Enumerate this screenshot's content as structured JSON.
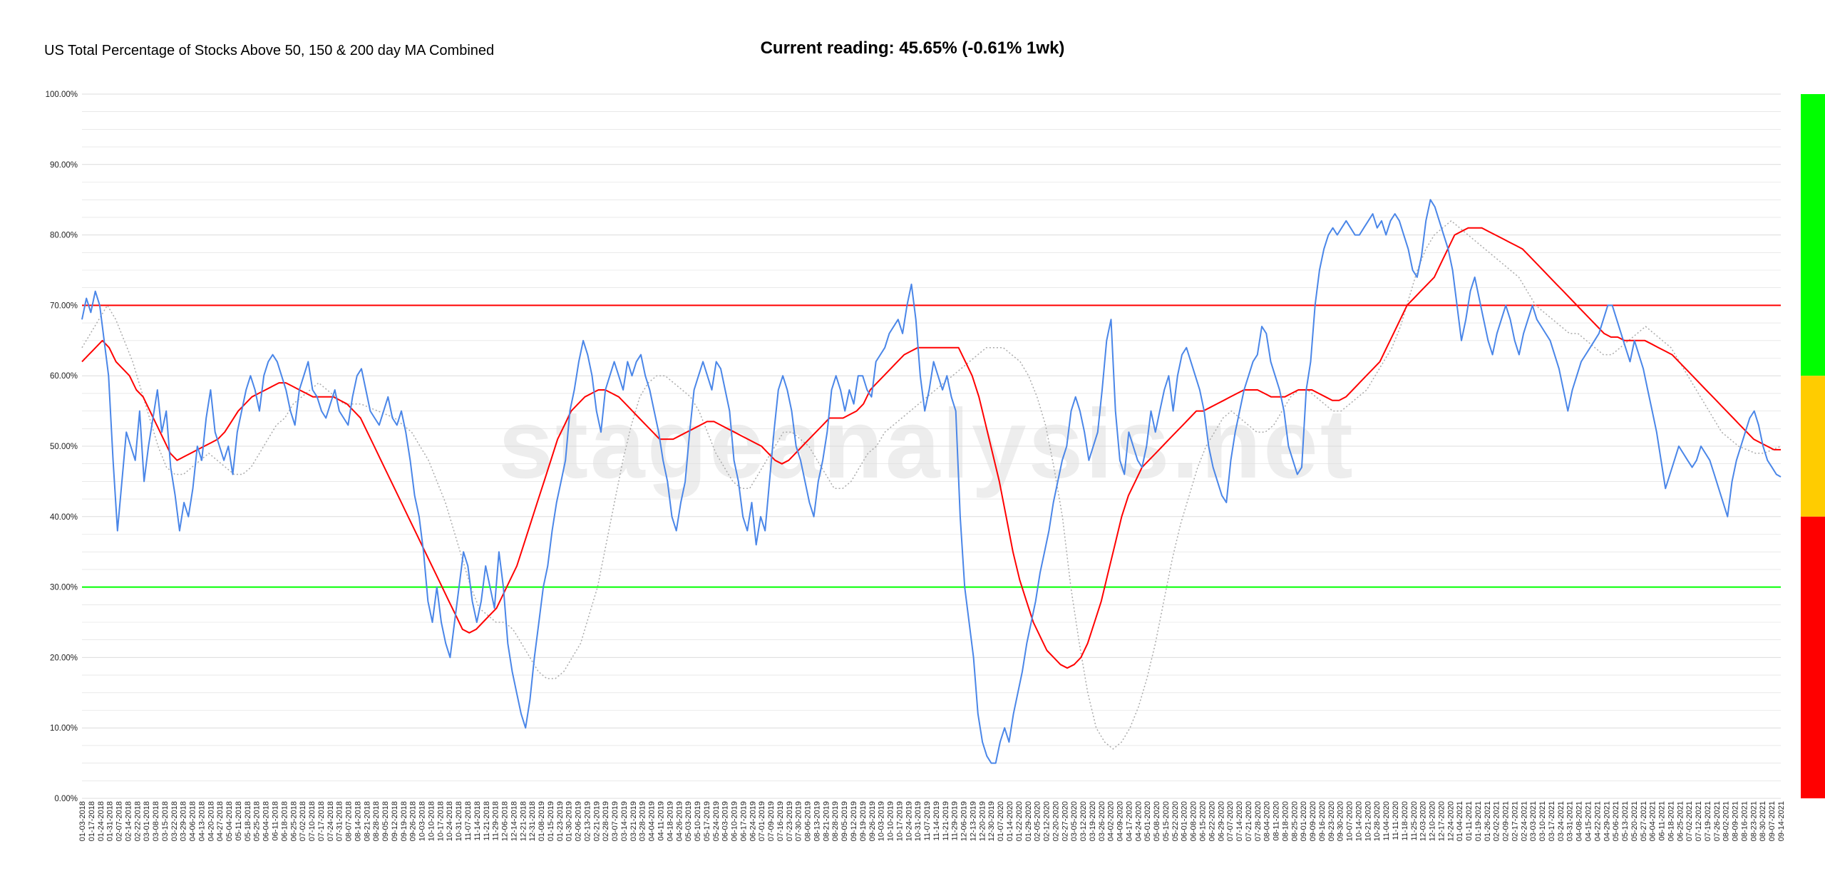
{
  "header": {
    "title": "US Total Percentage of Stocks Above 50, 150 & 200 day MA Combined",
    "current_reading": "Current reading: 45.65% (-0.61% 1wk)"
  },
  "watermark": "stageanalysis.net",
  "colors": {
    "primary_line": "#4a86e8",
    "ma_red": "#ff0000",
    "ma_dotted": "#aaaaaa",
    "upper_ref": "#ff0000",
    "lower_ref": "#00ff00",
    "band_green": "#00ff00",
    "band_yellow": "#ffcc00",
    "band_red": "#ff0000",
    "grid": "#dcdcdc"
  },
  "chart_data": {
    "type": "line",
    "title": "US Total Percentage of Stocks Above 50, 150 & 200 day MA Combined",
    "xlabel": "",
    "ylabel": "",
    "ylim": [
      0,
      100
    ],
    "y_tick_labels": [
      "0.00%",
      "10.00%",
      "20.00%",
      "30.00%",
      "40.00%",
      "50.00%",
      "60.00%",
      "70.00%",
      "80.00%",
      "90.00%",
      "100.00%"
    ],
    "grid": true,
    "reference_lines": [
      {
        "y": 70,
        "color": "#ff0000"
      },
      {
        "y": 30,
        "color": "#00ff00"
      }
    ],
    "x_tick_labels": [
      "01-03-2018",
      "01-17-2018",
      "01-24-2018",
      "01-31-2018",
      "02-07-2018",
      "02-14-2018",
      "02-22-2018",
      "03-01-2018",
      "03-08-2018",
      "03-15-2018",
      "03-22-2018",
      "03-29-2018",
      "04-06-2018",
      "04-13-2018",
      "04-20-2018",
      "04-27-2018",
      "05-04-2018",
      "05-11-2018",
      "05-18-2018",
      "05-25-2018",
      "06-04-2018",
      "06-11-2018",
      "06-18-2018",
      "06-25-2018",
      "07-02-2018",
      "07-10-2018",
      "07-17-2018",
      "07-24-2018",
      "07-31-2018",
      "08-07-2018",
      "08-14-2018",
      "08-21-2018",
      "08-28-2018",
      "09-05-2018",
      "09-12-2018",
      "09-19-2018",
      "09-26-2018",
      "10-03-2018",
      "10-10-2018",
      "10-17-2018",
      "10-24-2018",
      "10-31-2018",
      "11-07-2018",
      "11-14-2018",
      "11-21-2018",
      "11-29-2018",
      "12-06-2018",
      "12-14-2018",
      "12-21-2018",
      "12-31-2018",
      "01-08-2019",
      "01-15-2019",
      "01-23-2019",
      "01-30-2019",
      "02-06-2019",
      "02-13-2019",
      "02-21-2019",
      "02-28-2019",
      "03-07-2019",
      "03-14-2019",
      "03-21-2019",
      "03-28-2019",
      "04-04-2019",
      "04-11-2019",
      "04-18-2019",
      "04-26-2019",
      "05-03-2019",
      "05-10-2019",
      "05-17-2019",
      "05-24-2019",
      "06-03-2019",
      "06-10-2019",
      "06-17-2019",
      "06-24-2019",
      "07-01-2019",
      "07-09-2019",
      "07-16-2019",
      "07-23-2019",
      "07-30-2019",
      "08-06-2019",
      "08-13-2019",
      "08-21-2019",
      "08-28-2019",
      "09-05-2019",
      "09-12-2019",
      "09-19-2019",
      "09-26-2019",
      "10-03-2019",
      "10-10-2019",
      "10-17-2019",
      "10-24-2019",
      "10-31-2019",
      "11-07-2019",
      "11-14-2019",
      "11-21-2019",
      "11-29-2019",
      "12-06-2019",
      "12-13-2019",
      "12-20-2019",
      "12-30-2019",
      "01-07-2020",
      "01-14-2020",
      "01-22-2020",
      "01-29-2020",
      "02-05-2020",
      "02-12-2020",
      "02-20-2020",
      "02-27-2020",
      "03-05-2020",
      "03-12-2020",
      "03-19-2020",
      "03-26-2020",
      "04-02-2020",
      "04-09-2020",
      "04-17-2020",
      "04-24-2020",
      "05-01-2020",
      "05-08-2020",
      "05-15-2020",
      "05-22-2020",
      "06-01-2020",
      "06-08-2020",
      "06-15-2020",
      "06-22-2020",
      "06-29-2020",
      "07-07-2020",
      "07-14-2020",
      "07-21-2020",
      "07-28-2020",
      "08-04-2020",
      "08-11-2020",
      "08-18-2020",
      "08-25-2020",
      "09-01-2020",
      "09-09-2020",
      "09-16-2020",
      "09-23-2020",
      "09-30-2020",
      "10-07-2020",
      "10-14-2020",
      "10-21-2020",
      "10-28-2020",
      "11-04-2020",
      "11-11-2020",
      "11-18-2020",
      "11-25-2020",
      "12-03-2020",
      "12-10-2020",
      "12-17-2020",
      "12-24-2020",
      "01-04-2021",
      "01-11-2021",
      "01-19-2021",
      "01-26-2021",
      "02-02-2021",
      "02-09-2021",
      "02-17-2021",
      "02-24-2021",
      "03-03-2021",
      "03-10-2021",
      "03-17-2021",
      "03-24-2021",
      "03-31-2021",
      "04-08-2021",
      "04-15-2021",
      "04-22-2021",
      "04-29-2021",
      "05-06-2021",
      "05-13-2021",
      "05-20-2021",
      "05-27-2021",
      "06-04-2021",
      "06-11-2021",
      "06-18-2021",
      "06-25-2021",
      "07-02-2021",
      "07-12-2021",
      "07-19-2021",
      "07-26-2021",
      "08-02-2021",
      "08-09-2021",
      "08-16-2021",
      "08-23-2021",
      "08-30-2021",
      "09-07-2021",
      "09-14-2021"
    ],
    "series": [
      {
        "values": [
          68,
          71,
          69,
          72,
          70,
          65,
          60,
          48,
          38,
          45,
          52,
          50,
          48,
          55,
          45,
          50,
          54,
          58,
          52,
          55,
          47,
          43,
          38,
          42,
          40,
          44,
          50,
          48,
          54,
          58,
          52,
          50,
          48,
          50,
          46,
          52,
          55,
          58,
          60,
          58,
          55,
          60,
          62,
          63,
          62,
          60,
          58,
          55,
          53,
          58,
          60,
          62,
          58,
          57,
          55,
          54,
          56,
          58,
          55,
          54,
          53,
          57,
          60,
          61,
          58,
          55,
          54,
          53,
          55,
          57,
          54,
          53,
          55,
          52,
          48,
          43,
          40,
          35,
          28,
          25,
          30,
          25,
          22,
          20,
          25,
          30,
          35,
          33,
          28,
          25,
          28,
          33,
          30,
          27,
          35,
          30,
          22,
          18,
          15,
          12,
          10,
          14,
          20,
          25,
          30,
          33,
          38,
          42,
          45,
          48,
          55,
          58,
          62,
          65,
          63,
          60,
          55,
          52,
          58,
          60,
          62,
          60,
          58,
          62,
          60,
          62,
          63,
          60,
          58,
          55,
          52,
          48,
          45,
          40,
          38,
          42,
          45,
          52,
          58,
          60,
          62,
          60,
          58,
          62,
          61,
          58,
          55,
          48,
          45,
          40,
          38,
          42,
          36,
          40,
          38,
          45,
          52,
          58,
          60,
          58,
          55,
          50,
          48,
          45,
          42,
          40,
          45,
          48,
          52,
          58,
          60,
          58,
          55,
          58,
          56,
          60,
          60,
          58,
          57,
          62,
          63,
          64,
          66,
          67,
          68,
          66,
          70,
          73,
          68,
          60,
          55,
          58,
          62,
          60,
          58,
          60,
          57,
          55,
          40,
          30,
          25,
          20,
          12,
          8,
          6,
          5,
          5,
          8,
          10,
          8,
          12,
          15,
          18,
          22,
          25,
          28,
          32,
          35,
          38,
          42,
          45,
          48,
          50,
          55,
          57,
          55,
          52,
          48,
          50,
          52,
          58,
          65,
          68,
          55,
          48,
          46,
          52,
          50,
          48,
          47,
          50,
          55,
          52,
          55,
          58,
          60,
          55,
          60,
          63,
          64,
          62,
          60,
          58,
          55,
          50,
          47,
          45,
          43,
          42,
          48,
          52,
          55,
          58,
          60,
          62,
          63,
          67,
          66,
          62,
          60,
          58,
          55,
          50,
          48,
          46,
          47,
          58,
          62,
          70,
          75,
          78,
          80,
          81,
          80,
          81,
          82,
          81,
          80,
          80,
          81,
          82,
          83,
          81,
          82,
          80,
          82,
          83,
          82,
          80,
          78,
          75,
          74,
          77,
          82,
          85,
          84,
          82,
          80,
          78,
          75,
          70,
          65,
          68,
          72,
          74,
          71,
          68,
          65,
          63,
          66,
          68,
          70,
          68,
          65,
          63,
          66,
          68,
          70,
          68,
          67,
          66,
          65,
          63,
          61,
          58,
          55,
          58,
          60,
          62,
          63,
          64,
          65,
          66,
          68,
          70,
          70,
          68,
          66,
          64,
          62,
          65,
          63,
          61,
          58,
          55,
          52,
          48,
          44,
          46,
          48,
          50,
          49,
          48,
          47,
          48,
          50,
          49,
          48,
          46,
          44,
          42,
          40,
          45,
          48,
          50,
          52,
          54,
          55,
          53,
          50,
          48,
          47,
          46,
          45.65
        ]
      },
      {
        "values": [
          62,
          63,
          64,
          65,
          64,
          62,
          61,
          60,
          58,
          57,
          55,
          53,
          51,
          49,
          48,
          48.5,
          49,
          49.5,
          50,
          50.5,
          51,
          52,
          53.5,
          55,
          56,
          57,
          57.5,
          58,
          58.5,
          59,
          59,
          58.5,
          58,
          57.5,
          57,
          57,
          57,
          57,
          56.5,
          56,
          55,
          54,
          52,
          50,
          48,
          46,
          44,
          42,
          40,
          38,
          36,
          34,
          32,
          30,
          28,
          26,
          24,
          23.5,
          24,
          25,
          26,
          27,
          29,
          31,
          33,
          36,
          39,
          42,
          45,
          48,
          51,
          53,
          55,
          56,
          57,
          57.5,
          58,
          58,
          57.5,
          57,
          56,
          55,
          54,
          53,
          52,
          51,
          51,
          51,
          51.5,
          52,
          52.5,
          53,
          53.5,
          53.5,
          53,
          52.5,
          52,
          51.5,
          51,
          50.5,
          50,
          49,
          48,
          47.5,
          48,
          49,
          50,
          51,
          52,
          53,
          54,
          54,
          54,
          54.5,
          55,
          56,
          58,
          59,
          60,
          61,
          62,
          63,
          63.5,
          64,
          64,
          64,
          64,
          64,
          64,
          64,
          62,
          60,
          57,
          53,
          49,
          45,
          40,
          35,
          31,
          28,
          25,
          23,
          21,
          20,
          19,
          18.5,
          19,
          20,
          22,
          25,
          28,
          32,
          36,
          40,
          43,
          45,
          47,
          48,
          49,
          50,
          51,
          52,
          53,
          54,
          55,
          55,
          55.5,
          56,
          56.5,
          57,
          57.5,
          58,
          58,
          58,
          57.5,
          57,
          57,
          57,
          57.5,
          58,
          58,
          58,
          57.5,
          57,
          56.5,
          56.5,
          57,
          58,
          59,
          60,
          61,
          62,
          64,
          66,
          68,
          70,
          71,
          72,
          73,
          74,
          76,
          78,
          80,
          80.5,
          81,
          81,
          81,
          80.5,
          80,
          79.5,
          79,
          78.5,
          78,
          77,
          76,
          75,
          74,
          73,
          72,
          71,
          70,
          69,
          68,
          67,
          66,
          65.5,
          65.5,
          65,
          65,
          65,
          65,
          64.5,
          64,
          63.5,
          63,
          62,
          61,
          60,
          59,
          58,
          57,
          56,
          55,
          54,
          53,
          52,
          51,
          50.5,
          50,
          49.5,
          49.5
        ]
      },
      {
        "values": [
          64,
          66,
          68,
          70,
          68,
          65,
          62,
          58,
          54,
          50,
          47,
          46,
          46,
          47,
          48,
          49,
          48,
          47,
          46,
          46,
          47,
          49,
          51,
          53,
          54,
          56,
          57,
          58,
          59,
          58,
          57,
          56,
          56,
          56,
          55.5,
          55,
          54.5,
          54,
          53,
          52,
          50,
          48,
          45,
          42,
          38,
          34,
          30,
          27,
          26,
          25,
          25,
          24,
          22,
          20,
          18,
          17,
          17,
          18,
          20,
          22,
          26,
          30,
          36,
          42,
          48,
          53,
          57,
          59,
          60,
          60,
          59,
          58,
          57,
          55,
          52,
          49,
          47,
          45,
          44,
          44,
          46,
          48,
          50,
          52,
          52,
          51,
          50,
          48,
          46,
          44,
          44,
          45,
          47,
          49,
          50,
          52,
          53,
          54,
          55,
          56,
          57,
          58,
          59,
          60,
          61,
          62,
          63,
          64,
          64,
          64,
          63,
          62,
          60,
          57,
          53,
          47,
          40,
          30,
          22,
          15,
          10,
          8,
          7,
          8,
          10,
          13,
          17,
          22,
          28,
          34,
          39,
          43,
          47,
          50,
          52,
          54,
          55,
          54,
          53,
          52,
          52,
          53,
          55,
          57,
          58,
          58,
          57,
          56,
          55,
          55,
          56,
          57,
          58,
          60,
          62,
          64,
          67,
          71,
          75,
          78,
          80,
          81,
          82,
          81,
          80,
          79,
          78,
          77,
          76,
          75,
          74,
          72,
          70,
          69,
          68,
          67,
          66,
          66,
          65,
          64,
          63,
          63,
          64,
          65,
          66,
          67,
          66,
          65,
          64,
          62,
          60,
          58,
          56,
          54,
          52,
          51,
          50,
          49.5,
          49,
          49,
          49.5,
          50
        ]
      }
    ]
  }
}
